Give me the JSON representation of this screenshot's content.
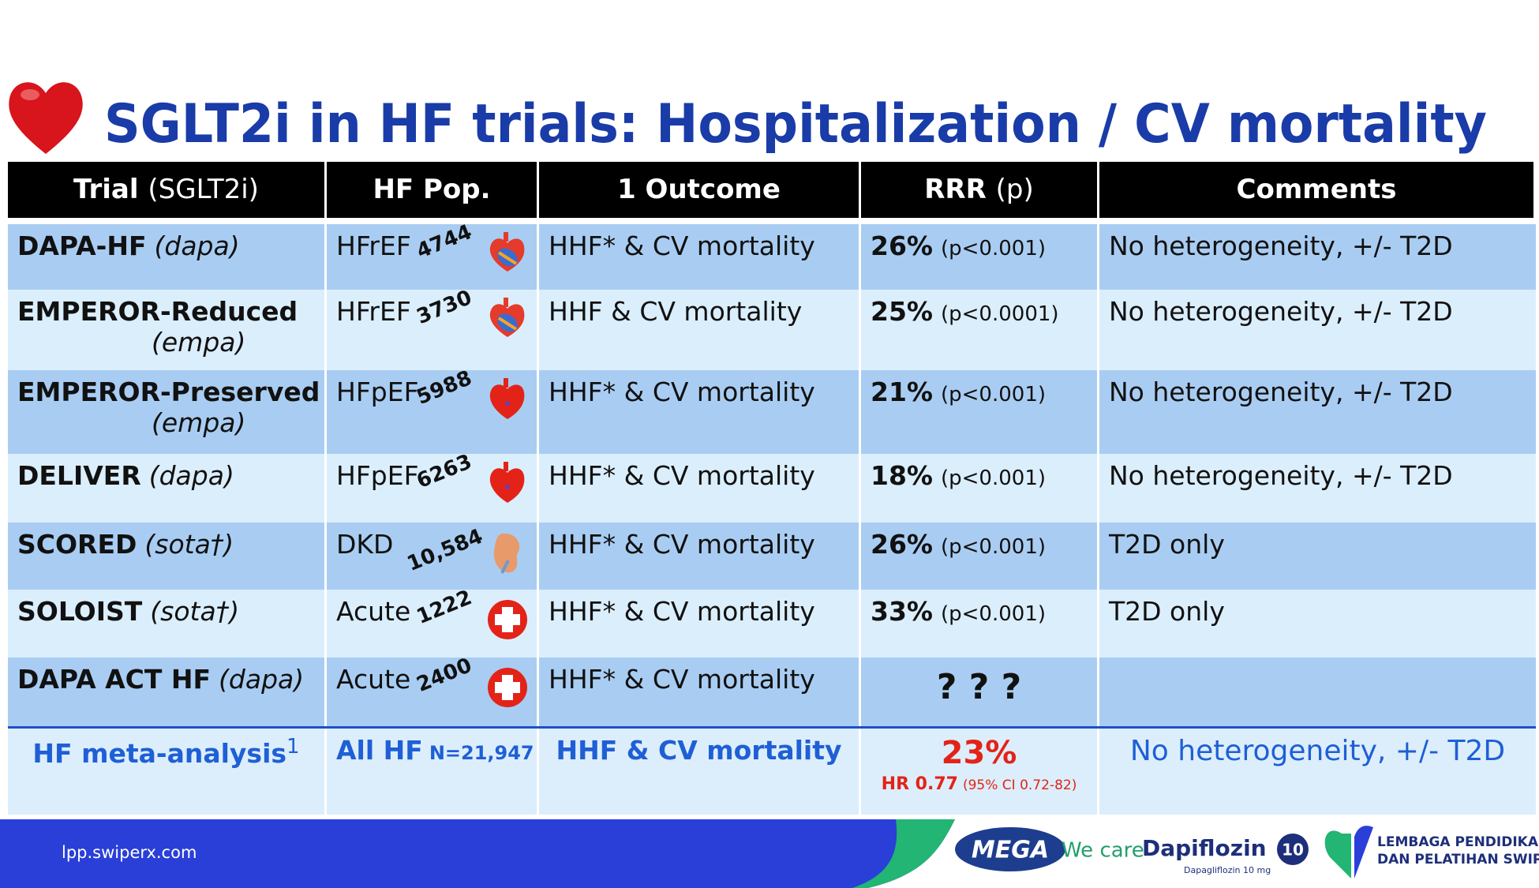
{
  "header": {
    "title": "SGLT2i in HF trials: Hospitalization / CV mortality"
  },
  "table": {
    "columns": [
      {
        "label": "Trial",
        "sub": "(SGLT2i)"
      },
      {
        "label": "HF Pop."
      },
      {
        "label": "1 Outcome"
      },
      {
        "label": "RRR",
        "sub": "(p)"
      },
      {
        "label": "Comments"
      }
    ],
    "rows": [
      {
        "trial": "DAPA-HF",
        "drug": "(dapa)",
        "pop": "HFrEF",
        "n": "4744",
        "outcome": "HHF* & CV mortality",
        "rrr": "26%",
        "p": "(p<0.001)",
        "comment": "No heterogeneity, +/- T2D"
      },
      {
        "trial": "EMPEROR-Reduced",
        "drug": "(empa)",
        "pop": "HFrEF",
        "n": "3730",
        "outcome": "HHF & CV mortality",
        "rrr": "25%",
        "p": "(p<0.0001)",
        "comment": "No heterogeneity, +/- T2D"
      },
      {
        "trial": "EMPEROR-Preserved",
        "drug": "(empa)",
        "pop": "HFpEF",
        "n": "5988",
        "outcome": "HHF* & CV mortality",
        "rrr": "21%",
        "p": "(p<0.001)",
        "comment": "No heterogeneity, +/- T2D"
      },
      {
        "trial": "DELIVER",
        "drug": "(dapa)",
        "pop": "HFpEF",
        "n": "6263",
        "outcome": "HHF* & CV mortality",
        "rrr": "18%",
        "p": "(p<0.001)",
        "comment": "No heterogeneity, +/- T2D"
      },
      {
        "trial": "SCORED",
        "drug": "(sota†)",
        "pop": "DKD",
        "n": "10,584",
        "outcome": "HHF* & CV mortality",
        "rrr": "26%",
        "p": "(p<0.001)",
        "comment": "T2D only"
      },
      {
        "trial": "SOLOIST",
        "drug": "(sota†)",
        "pop": "Acute",
        "n": "1222",
        "outcome": "HHF* & CV mortality",
        "rrr": "33%",
        "p": "(p<0.001)",
        "comment": "T2D only"
      },
      {
        "trial": "DAPA ACT HF",
        "drug": "(dapa)",
        "pop": "Acute",
        "n": "2400",
        "outcome": "HHF* & CV mortality",
        "rrr": "? ? ?"
      }
    ],
    "meta": {
      "trial": "HF meta-analysis",
      "ref": "1",
      "pop": "All HF",
      "n": "N=21,947",
      "outcome": "HHF & CV mortality",
      "rrr": "23%",
      "hr": "HR 0.77",
      "ci": "(95% CI 0.72-82)",
      "comment": "No heterogeneity, +/- T2D"
    }
  },
  "footer": {
    "url": "lpp.swiperx.com",
    "brand": "MEGA",
    "tagline": "We care",
    "product": "Dapiflozin",
    "product_sub": "Dapagliflozin 10 mg",
    "badge": "10",
    "org_line1": "LEMBAGA PENDIDIKAN",
    "org_line2": "DAN PELATIHAN SWIPERX"
  }
}
